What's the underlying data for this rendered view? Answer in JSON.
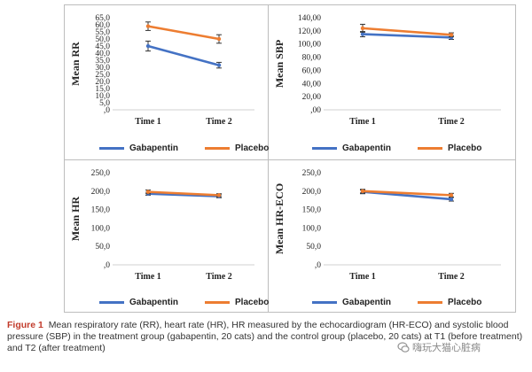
{
  "chart_data": [
    {
      "type": "line",
      "ylabel": "Mean RR",
      "categories": [
        "Time 1",
        "Time 2"
      ],
      "yticks": [
        "65,0",
        "60,0",
        "55,0",
        "50,0",
        "45,0",
        "40,0",
        "35,0",
        "30,0",
        "25,0",
        "20,0",
        "15,0",
        "10,0",
        "5,0",
        ",0"
      ],
      "ylim": [
        0,
        65
      ],
      "series": [
        {
          "name": "Gabapentin",
          "values": [
            45,
            31.5
          ],
          "error": [
            3.5,
            2
          ],
          "color": "#4472c4"
        },
        {
          "name": "Placebo",
          "values": [
            59,
            50
          ],
          "error": [
            3,
            3
          ],
          "color": "#ed7d31"
        }
      ]
    },
    {
      "type": "line",
      "ylabel": "Mean SBP",
      "categories": [
        "Time 1",
        "Time 2"
      ],
      "yticks": [
        "140,00",
        "120,00",
        "100,00",
        "80,00",
        "60,00",
        "40,00",
        "20,00",
        ",00"
      ],
      "ylim": [
        0,
        140
      ],
      "series": [
        {
          "name": "Gabapentin",
          "values": [
            115,
            110
          ],
          "error": [
            4,
            3
          ],
          "color": "#4472c4"
        },
        {
          "name": "Placebo",
          "values": [
            124,
            114
          ],
          "error": [
            6,
            3
          ],
          "color": "#ed7d31"
        }
      ]
    },
    {
      "type": "line",
      "ylabel": "Mean HR",
      "categories": [
        "Time 1",
        "Time 2"
      ],
      "yticks": [
        "250,0",
        "200,0",
        "150,0",
        "100,0",
        "50,0",
        ",0"
      ],
      "ylim": [
        0,
        250
      ],
      "series": [
        {
          "name": "Gabapentin",
          "values": [
            193,
            186
          ],
          "error": [
            4,
            4
          ],
          "color": "#4472c4"
        },
        {
          "name": "Placebo",
          "values": [
            198,
            189
          ],
          "error": [
            5,
            4
          ],
          "color": "#ed7d31"
        }
      ]
    },
    {
      "type": "line",
      "ylabel": "Mean HR-ECO",
      "categories": [
        "Time 1",
        "Time 2"
      ],
      "yticks": [
        "250,0",
        "200,0",
        "150,0",
        "100,0",
        "50,0",
        ",0"
      ],
      "ylim": [
        0,
        250
      ],
      "series": [
        {
          "name": "Gabapentin",
          "values": [
            198,
            178
          ],
          "error": [
            5,
            5
          ],
          "color": "#4472c4"
        },
        {
          "name": "Placebo",
          "values": [
            200,
            189
          ],
          "error": [
            5,
            5
          ],
          "color": "#ed7d31"
        }
      ]
    }
  ],
  "legend": {
    "gabapentin": "Gabapentin",
    "placebo": "Placebo"
  },
  "caption": {
    "figure_label": "Figure 1",
    "text": "Mean respiratory rate (RR), heart rate (HR), HR measured by the echocardiogram (HR-ECO) and systolic blood pressure (SBP) in the treatment group (gabapentin, 20 cats) and the control group (placebo, 20 cats) at T1 (before treatment) and T2 (after treatment)"
  },
  "watermark": {
    "text": "嗨玩大猫心脏病"
  },
  "colors": {
    "gabapentin": "#4472c4",
    "placebo": "#ed7d31",
    "caption_label": "#c23b2b"
  }
}
